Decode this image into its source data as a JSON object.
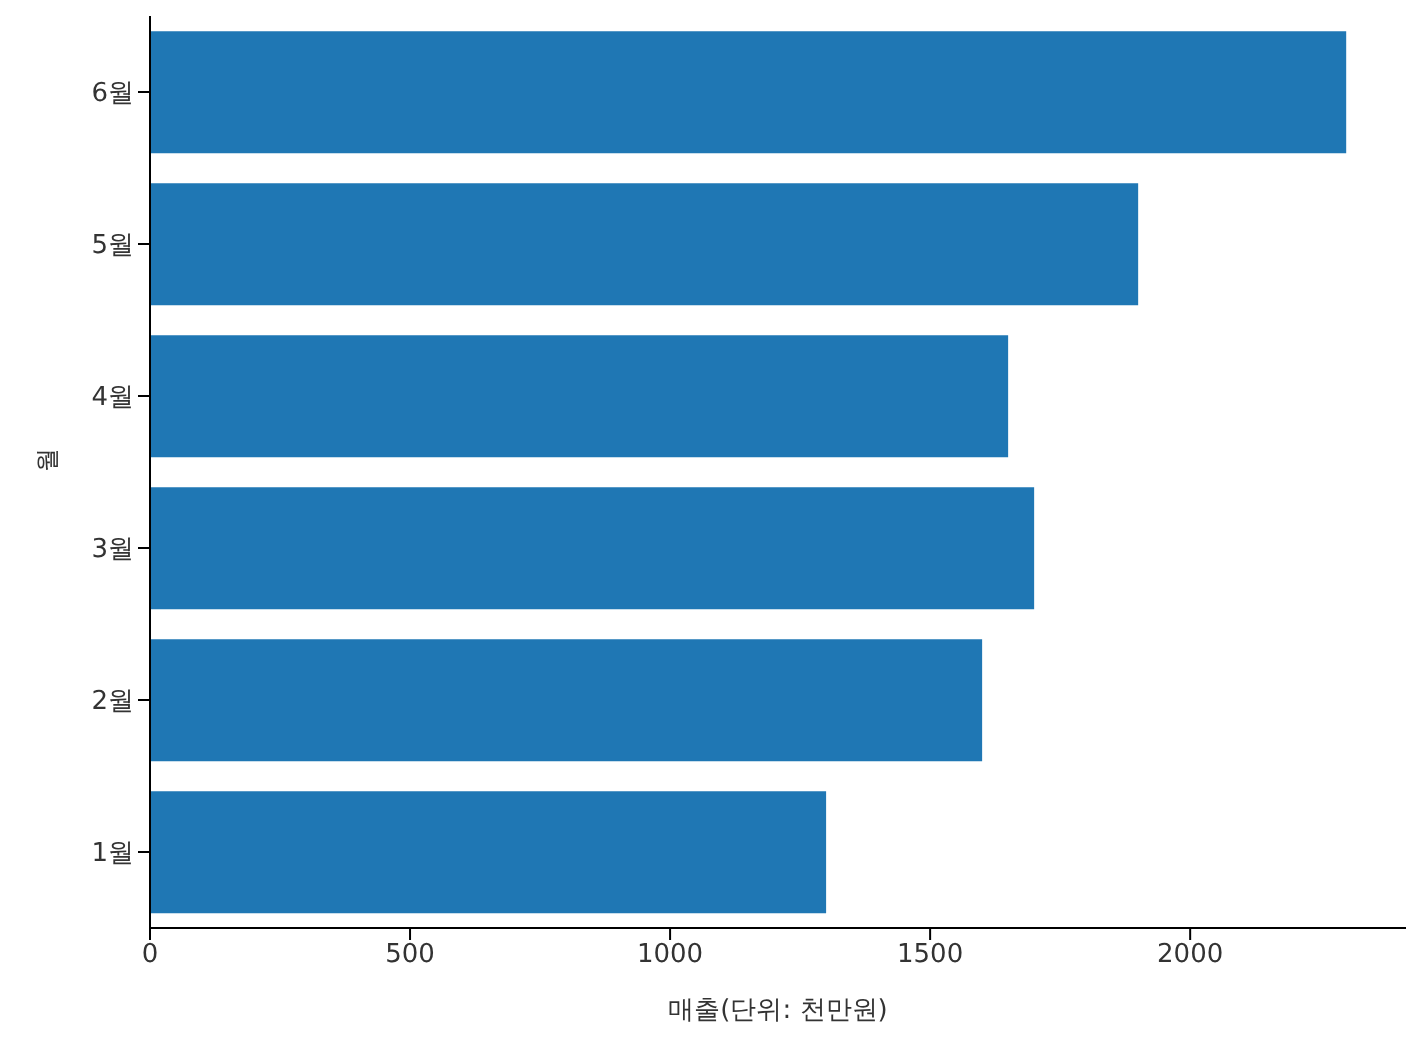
{
  "chart_data": {
    "type": "bar",
    "orientation": "horizontal",
    "xlabel": "매출(단위: 천만원)",
    "ylabel": "월",
    "categories": [
      "6월",
      "5월",
      "4월",
      "3월",
      "2월",
      "1월"
    ],
    "values": [
      2300,
      1900,
      1650,
      1700,
      1600,
      1300
    ],
    "color": "#1f77b4",
    "xlim": [
      0,
      2415
    ],
    "xticks": [
      0,
      500,
      1000,
      1500,
      2000
    ],
    "grid": false
  }
}
